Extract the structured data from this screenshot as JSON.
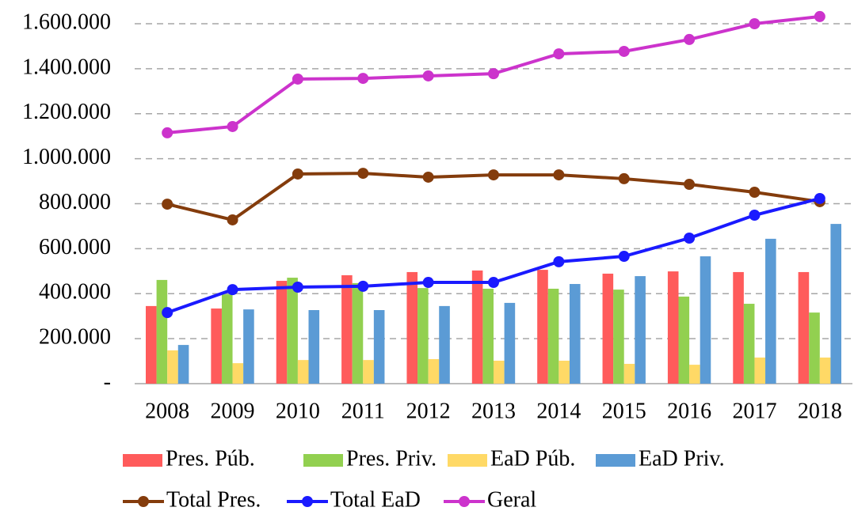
{
  "chart_data": {
    "type": "bar",
    "categories": [
      "2008",
      "2009",
      "2010",
      "2011",
      "2012",
      "2013",
      "2014",
      "2015",
      "2016",
      "2017",
      "2018"
    ],
    "series": [
      {
        "name": "Pres. Púb.",
        "type": "bar",
        "color": "#ff5b5b",
        "values": [
          345000,
          334000,
          457000,
          482000,
          496000,
          503000,
          506000,
          489000,
          499000,
          496000,
          496000
        ]
      },
      {
        "name": "Pres. Priv.",
        "type": "bar",
        "color": "#92d050",
        "values": [
          461000,
          397000,
          471000,
          447000,
          425000,
          422000,
          422000,
          418000,
          387000,
          355000,
          316000
        ]
      },
      {
        "name": "EaD Púb.",
        "type": "bar",
        "color": "#ffd966",
        "values": [
          148000,
          91000,
          105000,
          105000,
          109000,
          102000,
          102000,
          88000,
          84000,
          116000,
          116000
        ]
      },
      {
        "name": "EaD Priv.",
        "type": "bar",
        "color": "#5b9bd5",
        "values": [
          172000,
          330000,
          327000,
          327000,
          345000,
          359000,
          443000,
          478000,
          566000,
          644000,
          710000
        ]
      },
      {
        "name": "Total Pres.",
        "type": "line",
        "color": "#843c0c",
        "values": [
          798000,
          728000,
          932000,
          935000,
          918000,
          928000,
          928000,
          911000,
          886000,
          851000,
          809000
        ]
      },
      {
        "name": "Total EaD",
        "type": "line",
        "color": "#1a1aff",
        "values": [
          316000,
          418000,
          429000,
          433000,
          450000,
          450000,
          542000,
          566000,
          647000,
          749000,
          823000
        ]
      },
      {
        "name": "Geral",
        "type": "line",
        "color": "#cc33cc",
        "values": [
          1115000,
          1143000,
          1354000,
          1357000,
          1368000,
          1378000,
          1466000,
          1477000,
          1530000,
          1600000,
          1632000
        ]
      }
    ],
    "ylim": [
      0,
      1600000
    ],
    "yticks": [
      {
        "value": 0,
        "label": "-"
      },
      {
        "value": 200000,
        "label": "200.000"
      },
      {
        "value": 400000,
        "label": "400.000"
      },
      {
        "value": 600000,
        "label": "600.000"
      },
      {
        "value": 800000,
        "label": "800.000"
      },
      {
        "value": 1000000,
        "label": "1.000.000"
      },
      {
        "value": 1200000,
        "label": "1.200.000"
      },
      {
        "value": 1400000,
        "label": "1.400.000"
      },
      {
        "value": 1600000,
        "label": "1.600.000"
      }
    ],
    "grid": true
  }
}
